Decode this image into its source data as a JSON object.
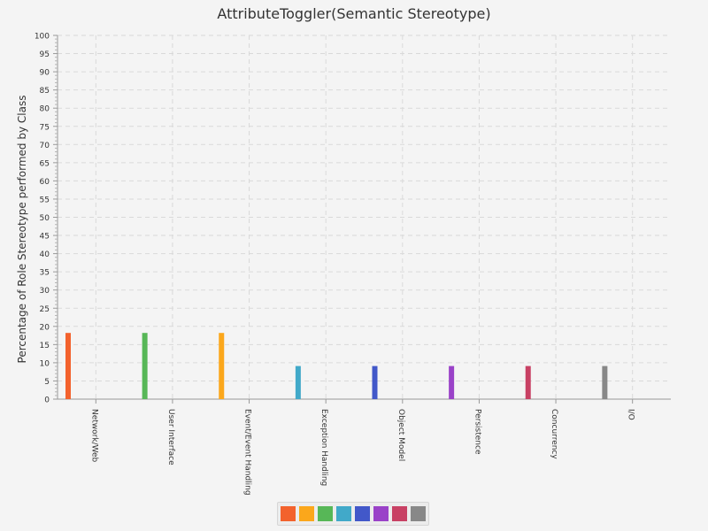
{
  "chart_data": {
    "type": "bar",
    "title": "AttributeToggler(Semantic Stereotype)",
    "xlabel": "",
    "ylabel": "Percentage of Role Stereotype performed by Class",
    "ylim": [
      0,
      100
    ],
    "ytick_step": 5,
    "grid": true,
    "legend_placement": "bottom",
    "categories": [
      "Network/Web",
      "User Interface",
      "Event/Event Handling",
      "Exception Handling",
      "Object Model",
      "Persistence",
      "Concurrency",
      "I/O"
    ],
    "values": [
      18.2,
      18.2,
      18.2,
      9.1,
      9.1,
      9.1,
      9.1,
      9.1
    ],
    "colors": [
      "#f3622d",
      "#57b757",
      "#fba71b",
      "#41a9c9",
      "#4258c9",
      "#9a42c8",
      "#c84164",
      "#888888"
    ],
    "legend_colors": [
      "#f3622d",
      "#fba71b",
      "#57b757",
      "#41a9c9",
      "#4258c9",
      "#9a42c8",
      "#c84164",
      "#888888"
    ]
  }
}
